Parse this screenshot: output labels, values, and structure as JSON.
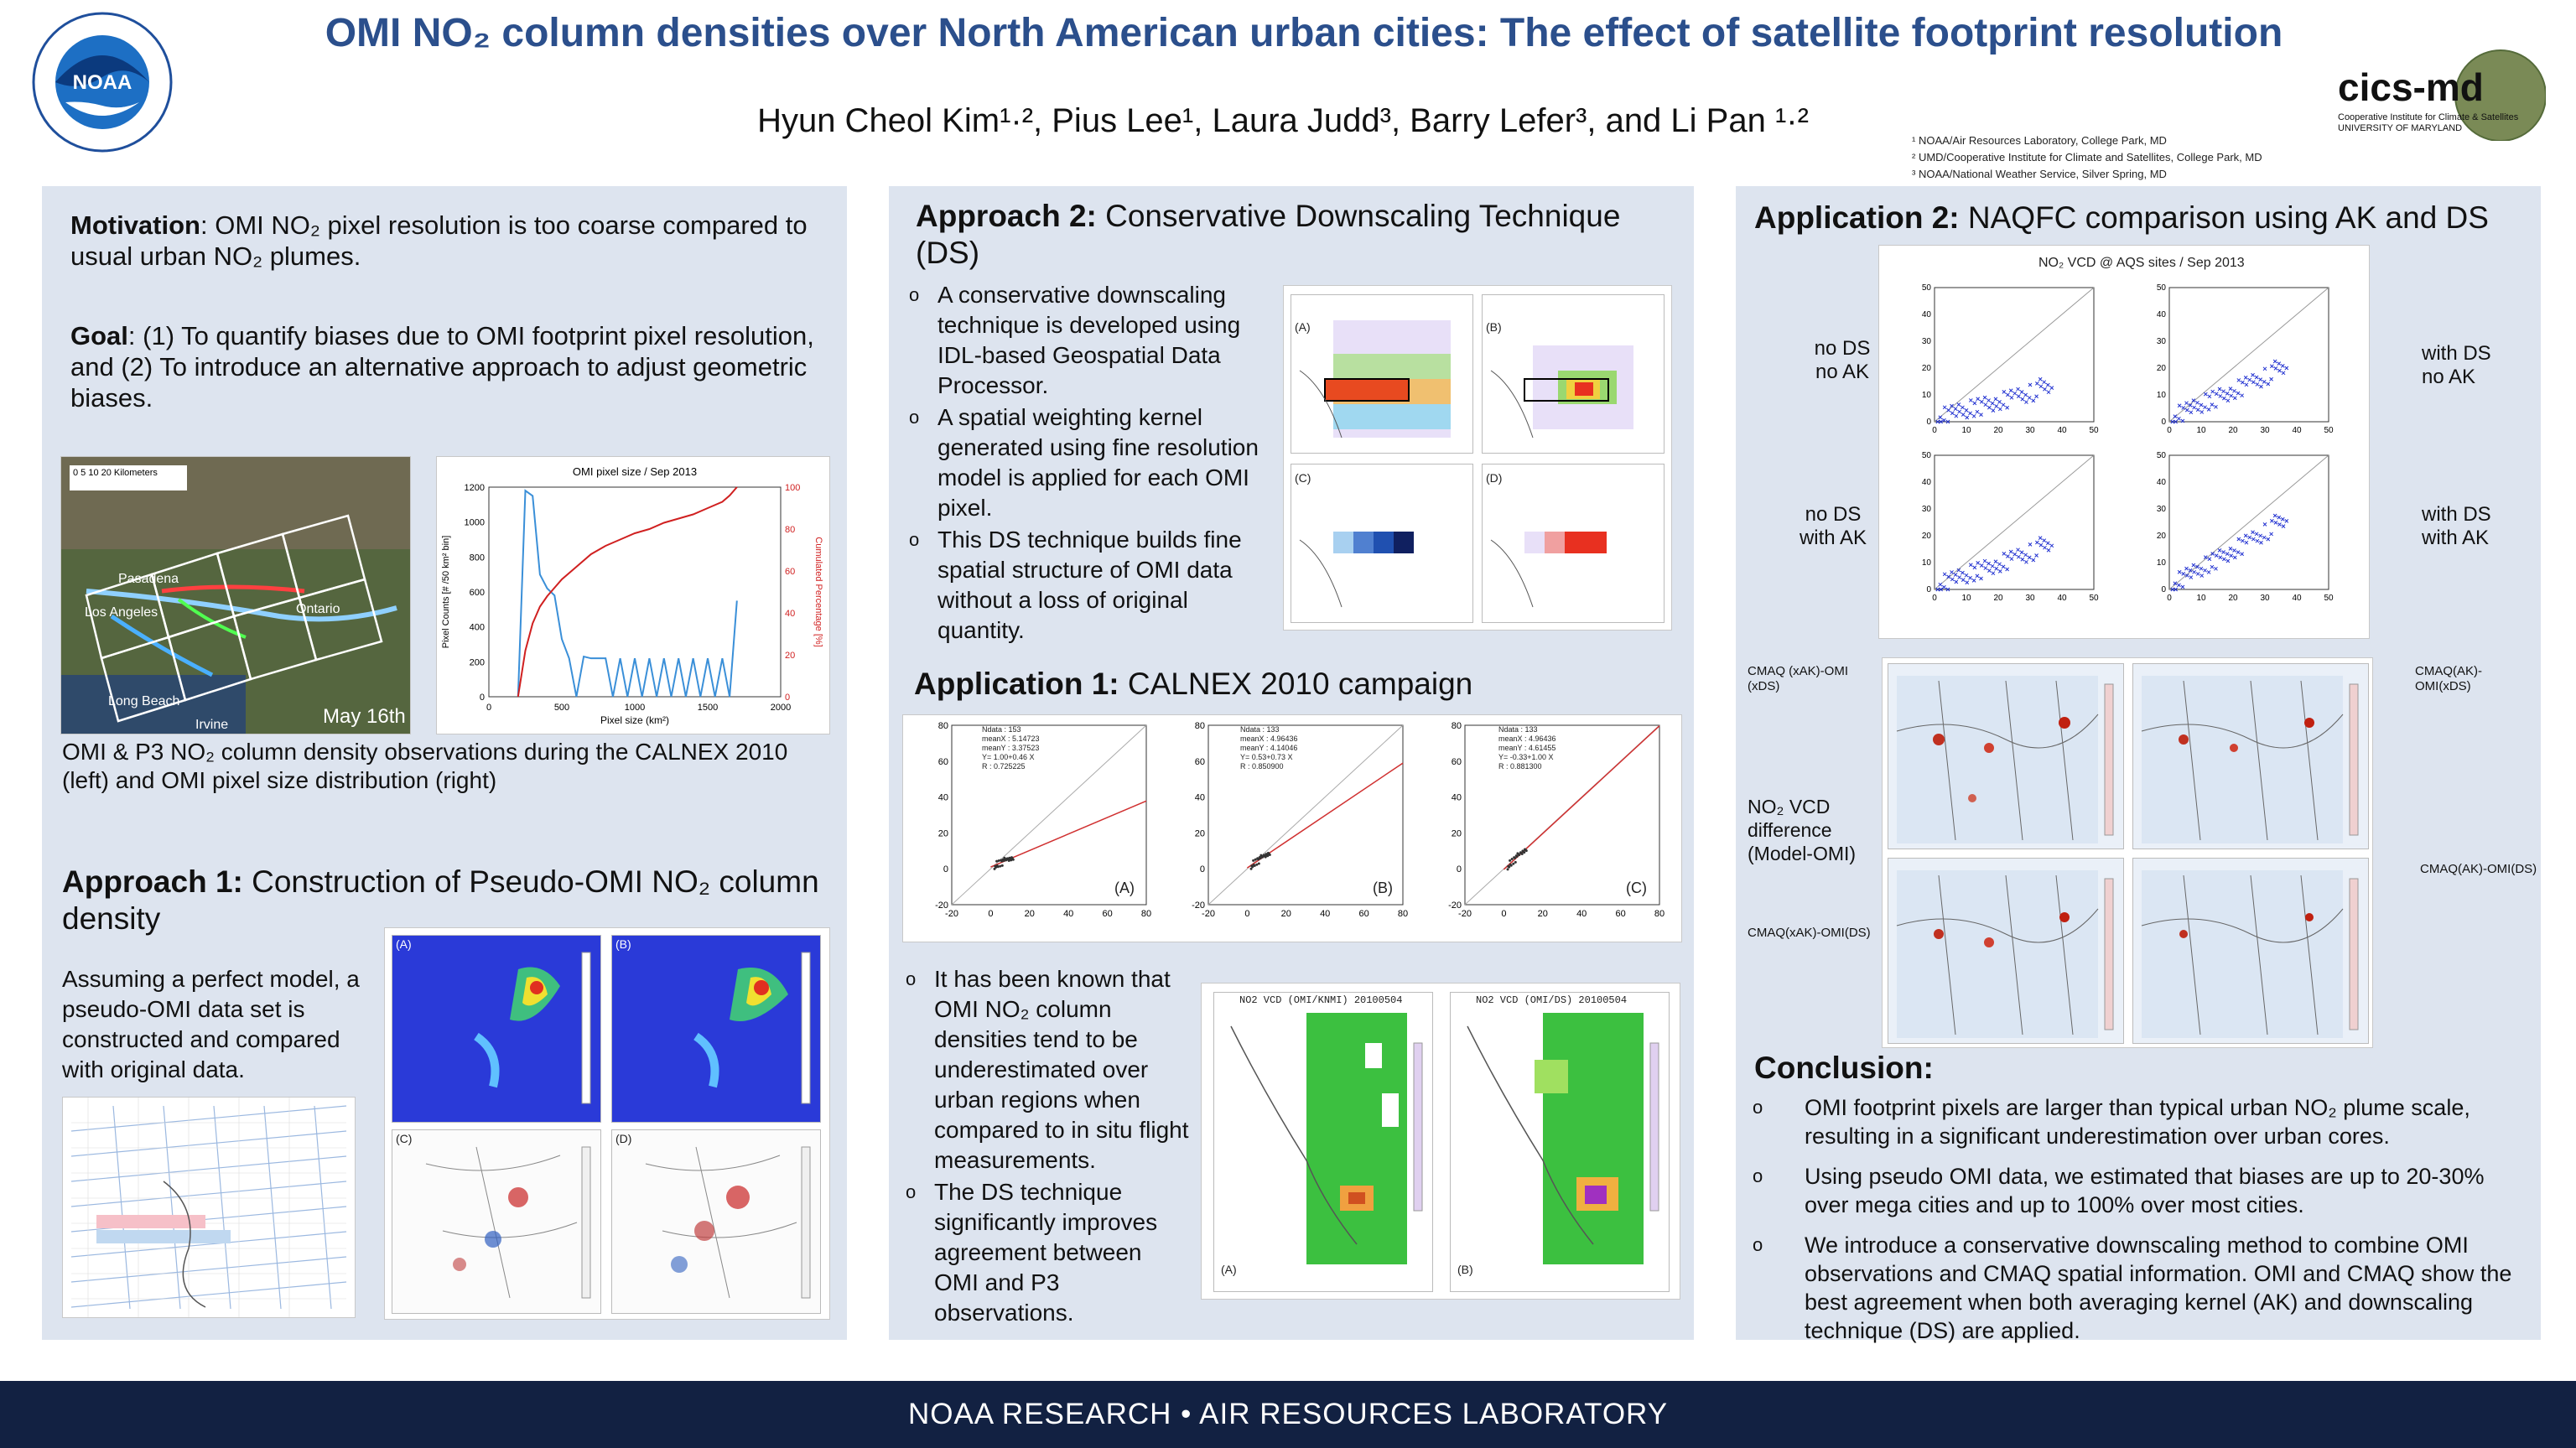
{
  "header": {
    "title": "OMI NO₂ column densities over North American urban cities: The effect of satellite footprint resolution",
    "authors": "Hyun Cheol Kim¹·², Pius Lee¹, Laura Judd³, Barry Lefer³, and Li Pan ¹·²",
    "affiliations": [
      "¹ NOAA/Air Resources Laboratory, College Park, MD",
      "² UMD/Cooperative Institute for Climate and Satellites, College Park, MD",
      "³ NOAA/National Weather Service, Silver Spring, MD"
    ],
    "logo_left": "NOAA",
    "logo_right": "cics-md",
    "logo_right_sub": "Cooperative Institute for Climate & Satellites UNIVERSITY OF MARYLAND"
  },
  "left": {
    "motivation_label": "Motivation",
    "motivation_text": ": OMI NO₂ pixel resolution is too coarse compared to usual urban NO₂ plumes.",
    "goal_label": "Goal",
    "goal_text": ": (1) To quantify biases due to OMI footprint pixel resolution, and (2) To introduce an alternative approach to adjust geometric biases.",
    "map_labels": [
      "Pasadena",
      "Los Angeles",
      "Ontario",
      "Long Beach",
      "Irvine"
    ],
    "map_date": "May 16th",
    "map_scale": "0  5  10     20 Kilometers",
    "fig_caption": "OMI & P3 NO₂ column density observations during the CALNEX 2010 (left) and OMI pixel size distribution (right)",
    "approach1_label": "Approach 1:",
    "approach1_title": " Construction of Pseudo-OMI NO₂ column density",
    "approach1_text": "Assuming a perfect model, a pseudo-OMI data set is constructed and compared with original data.",
    "approach1_panels": [
      "(A)",
      "(B)",
      "(C)",
      "(D)"
    ]
  },
  "middle": {
    "approach2_label": "Approach 2:",
    "approach2_title": " Conservative Downscaling Technique (DS)",
    "approach2_bullets": [
      "A conservative downscaling technique is developed using IDL-based Geospatial Data Processor.",
      "A spatial weighting kernel generated using fine resolution model is applied for each OMI pixel.",
      "This DS technique builds fine spatial structure of OMI data without a loss of original quantity."
    ],
    "approach2_panels": [
      "(A)",
      "(B)",
      "(C)",
      "(D)"
    ],
    "app1_label": "Application 1:",
    "app1_title": " CALNEX 2010 campaign",
    "scatter_panels": [
      {
        "label": "(A)",
        "stats": [
          "Ndata : 153",
          "meanX : 5.14723",
          "meanY : 3.37523",
          "Y= 1.00+0.46 X",
          "R : 0.725225"
        ]
      },
      {
        "label": "(B)",
        "stats": [
          "Ndata : 133",
          "meanX : 4.96436",
          "meanY : 4.14046",
          "Y= 0.53+0.73 X",
          "R : 0.850900"
        ]
      },
      {
        "label": "(C)",
        "stats": [
          "Ndata : 133",
          "meanX : 4.96436",
          "meanY : 4.61455",
          "Y= -0.33+1.00 X",
          "R : 0.881300"
        ]
      }
    ],
    "app1_bullets": [
      "It has been known that OMI NO₂ column densities tend to be underestimated over urban regions when compared to in situ flight measurements.",
      "The DS technique significantly improves agreement between OMI and P3 observations."
    ],
    "map_titles": [
      "NO2 VCD (OMI/KNMI) 20100504",
      "NO2 VCD (OMI/DS) 20100504"
    ],
    "map_panels": [
      "(A)",
      "(B)"
    ]
  },
  "right": {
    "app2_label": "Application 2:",
    "app2_title": " NAQFC comparison using AK and DS",
    "scatter_title": "NO₂ VCD @ AQS sites / Sep 2013",
    "scatter_labels_left": [
      "no DS\nno AK",
      "no DS\nwith AK"
    ],
    "scatter_labels_right": [
      "with DS\nno AK",
      "with DS\nwith AK"
    ],
    "map_labels_left": [
      "CMAQ (xAK)-OMI (xDS)",
      "CMAQ(xAK)-OMI(DS)"
    ],
    "map_labels_right": [
      "CMAQ(AK)-OMI(xDS)",
      "CMAQ(AK)-OMI(DS)"
    ],
    "vcd_label": "NO₂ VCD difference (Model-OMI)",
    "conclusion_title": "Conclusion:",
    "conclusion_bullets": [
      "OMI footprint pixels are larger than typical urban NO₂ plume scale, resulting in a significant underestimation over urban cores.",
      "Using pseudo OMI data, we estimated that biases are up to 20-30% over mega cities and up to 100% over most cities.",
      "We introduce a conservative downscaling method to combine OMI observations and CMAQ spatial information. OMI and CMAQ show the best agreement when both averaging kernel (AK) and downscaling technique (DS) are applied."
    ]
  },
  "footer": {
    "text": "NOAA RESEARCH • AIR RESOURCES LABORATORY"
  },
  "chart_data": [
    {
      "type": "line",
      "title": "OMI pixel size / Sep 2013",
      "xlabel": "Pixel size (km²)",
      "ylabel": "Pixel Counts [# /50 km² bin]",
      "y2label": "Cumulated Percentage [%]",
      "xlim": [
        0,
        2000
      ],
      "ylim": [
        0,
        1200
      ],
      "y2lim": [
        0,
        100
      ],
      "series": [
        {
          "color": "#3a8fd8",
          "x": [
            200,
            250,
            300,
            350,
            400,
            450,
            500,
            550,
            600,
            650,
            700,
            750,
            800,
            850,
            900,
            950,
            1000,
            1050,
            1100,
            1150,
            1200,
            1250,
            1300,
            1350,
            1400,
            1450,
            1500,
            1550,
            1600,
            1650,
            1700
          ],
          "values": [
            0,
            1180,
            1150,
            700,
            620,
            580,
            330,
            220,
            0,
            230,
            220,
            220,
            220,
            0,
            220,
            0,
            220,
            0,
            220,
            0,
            220,
            0,
            220,
            0,
            220,
            0,
            220,
            0,
            220,
            0,
            550
          ]
        },
        {
          "color": "#d02020",
          "axis": "right",
          "x": [
            200,
            250,
            300,
            350,
            400,
            450,
            500,
            600,
            700,
            800,
            900,
            1000,
            1100,
            1200,
            1300,
            1400,
            1500,
            1600,
            1650,
            1700
          ],
          "values": [
            0,
            22,
            35,
            43,
            48,
            52,
            56,
            62,
            68,
            72,
            75,
            78,
            80,
            83,
            85,
            87,
            90,
            93,
            96,
            100
          ]
        }
      ]
    }
  ]
}
